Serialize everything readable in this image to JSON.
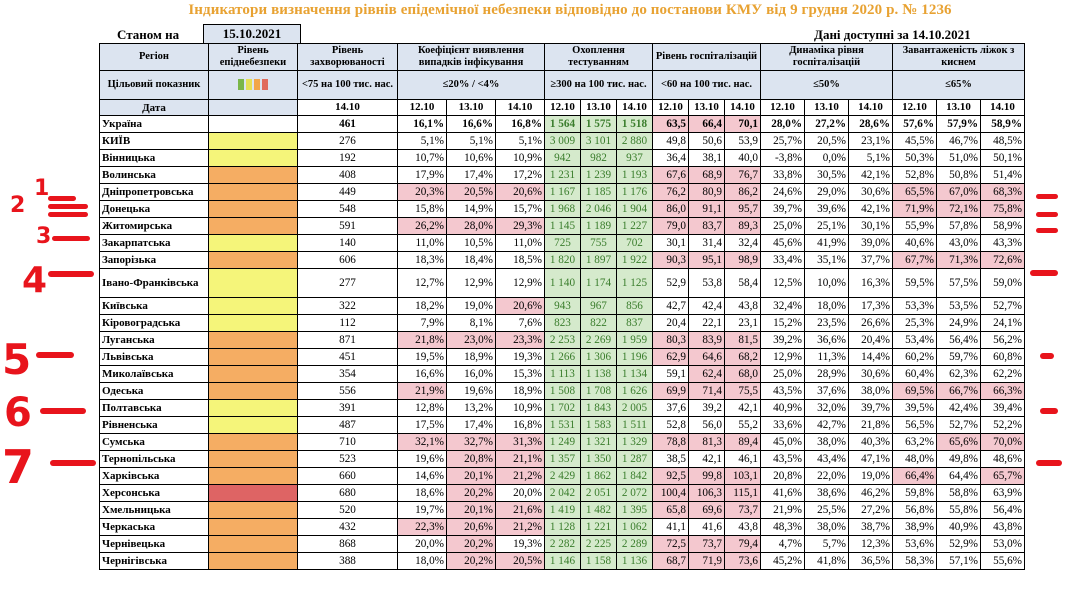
{
  "title": "Індикатори визначення рівнів епідемічної небезпеки відповідно до постанови КМУ від 9 грудня 2020 р. № 1236",
  "state_label": "Станом на",
  "state_date": "15.10.2021",
  "data_note": "Дані доступні за 14.10.2021",
  "colors": {
    "yellow": "#f5f57a",
    "orange": "#f5ad63",
    "red": "#de6464",
    "pink": "#f4c8cf",
    "green": "#d5eacc",
    "header": "#dce4f0"
  },
  "header": {
    "region": "Регіон",
    "target_label": "Цільовий показник",
    "date_label": "Дата",
    "level": "Рівень епіднебезпеки",
    "incidence": "Рівень захворюваності",
    "incidence_target": "<75 на 100 тис. нас.",
    "incidence_date": "14.10",
    "detection": "Коефіцієнт виявлення випадків інфікування",
    "detection_target": "≤20% / <4%",
    "testing": "Охоплення тестуванням",
    "testing_target": "≥300 на 100 тис. нас.",
    "hosp": "Рівень госпіталізацій",
    "hosp_target": "<60 на 100 тис. нас.",
    "dynamics": "Динаміка рівня госпіталізацій",
    "dynamics_target": "≤50%",
    "beds": "Завантаженість ліжок з киснем",
    "beds_target": "≤65%",
    "dates": [
      "12.10",
      "13.10",
      "14.10"
    ]
  },
  "swatch_colors": [
    "#7ab648",
    "#e5e055",
    "#f2a548",
    "#e06a5c"
  ],
  "rows": [
    {
      "name": "Україна",
      "lvl": "",
      "inc": "461",
      "det": [
        "16,1%",
        "16,6%",
        "16,8%"
      ],
      "tst": [
        "1 564",
        "1 575",
        "1 518"
      ],
      "hsp": [
        "63,5",
        "66,4",
        "70,1"
      ],
      "dyn": [
        "28,0%",
        "27,2%",
        "28,6%"
      ],
      "bed": [
        "57,6%",
        "57,9%",
        "58,9%"
      ]
    },
    {
      "name": "КИЇВ",
      "lvl": "yellow",
      "inc": "276",
      "det": [
        "5,1%",
        "5,1%",
        "5,1%"
      ],
      "tst": [
        "3 009",
        "3 101",
        "2 880"
      ],
      "hsp": [
        "49,8",
        "50,6",
        "53,9"
      ],
      "dyn": [
        "25,7%",
        "20,5%",
        "23,1%"
      ],
      "bed": [
        "45,5%",
        "46,7%",
        "48,5%"
      ]
    },
    {
      "name": "Вінницька",
      "lvl": "yellow",
      "inc": "192",
      "det": [
        "10,7%",
        "10,6%",
        "10,9%"
      ],
      "tst": [
        "942",
        "982",
        "937"
      ],
      "hsp": [
        "36,4",
        "38,1",
        "40,0"
      ],
      "dyn": [
        "-3,8%",
        "0,0%",
        "5,1%"
      ],
      "bed": [
        "50,3%",
        "51,0%",
        "50,1%"
      ]
    },
    {
      "name": "Волинська",
      "lvl": "orange",
      "inc": "408",
      "det": [
        "17,9%",
        "17,4%",
        "17,2%"
      ],
      "tst": [
        "1 231",
        "1 239",
        "1 193"
      ],
      "hsp": [
        "67,6",
        "68,9",
        "76,7"
      ],
      "dyn": [
        "33,8%",
        "30,5%",
        "42,1%"
      ],
      "bed": [
        "52,8%",
        "50,8%",
        "51,4%"
      ]
    },
    {
      "name": "Дніпропетровська",
      "lvl": "orange",
      "inc": "449",
      "det": [
        "20,3%",
        "20,5%",
        "20,6%"
      ],
      "tst": [
        "1 167",
        "1 185",
        "1 176"
      ],
      "hsp": [
        "76,2",
        "80,9",
        "86,2"
      ],
      "dyn": [
        "24,6%",
        "29,0%",
        "30,6%"
      ],
      "bed": [
        "65,5%",
        "67,0%",
        "68,3%"
      ]
    },
    {
      "name": "Донецька",
      "lvl": "orange",
      "inc": "548",
      "det": [
        "15,8%",
        "14,9%",
        "15,7%"
      ],
      "tst": [
        "1 968",
        "2 046",
        "1 904"
      ],
      "hsp": [
        "86,0",
        "91,1",
        "95,7"
      ],
      "dyn": [
        "39,7%",
        "39,6%",
        "42,1%"
      ],
      "bed": [
        "71,9%",
        "72,1%",
        "75,8%"
      ]
    },
    {
      "name": "Житомирська",
      "lvl": "orange",
      "inc": "591",
      "det": [
        "26,2%",
        "28,0%",
        "29,3%"
      ],
      "tst": [
        "1 145",
        "1 189",
        "1 227"
      ],
      "hsp": [
        "79,0",
        "83,7",
        "89,3"
      ],
      "dyn": [
        "25,0%",
        "25,1%",
        "30,1%"
      ],
      "bed": [
        "55,9%",
        "57,8%",
        "58,9%"
      ]
    },
    {
      "name": "Закарпатська",
      "lvl": "yellow",
      "inc": "140",
      "det": [
        "11,0%",
        "10,5%",
        "11,0%"
      ],
      "tst": [
        "725",
        "755",
        "702"
      ],
      "hsp": [
        "30,1",
        "31,4",
        "32,4"
      ],
      "dyn": [
        "45,6%",
        "41,9%",
        "39,0%"
      ],
      "bed": [
        "40,6%",
        "43,0%",
        "43,3%"
      ]
    },
    {
      "name": "Запорізька",
      "lvl": "orange",
      "inc": "606",
      "det": [
        "18,3%",
        "18,4%",
        "18,5%"
      ],
      "tst": [
        "1 820",
        "1 897",
        "1 922"
      ],
      "hsp": [
        "90,3",
        "95,1",
        "98,9"
      ],
      "dyn": [
        "33,4%",
        "35,1%",
        "37,7%"
      ],
      "bed": [
        "67,7%",
        "71,3%",
        "72,6%"
      ]
    },
    {
      "name": "Івано-Франківська",
      "lvl": "yellow",
      "inc": "277",
      "det": [
        "12,7%",
        "12,9%",
        "12,9%"
      ],
      "tst": [
        "1 140",
        "1 174",
        "1 125"
      ],
      "hsp": [
        "52,9",
        "53,8",
        "58,4"
      ],
      "dyn": [
        "12,5%",
        "10,0%",
        "16,3%"
      ],
      "bed": [
        "59,5%",
        "57,5%",
        "59,0%"
      ]
    },
    {
      "name": "Київська",
      "lvl": "yellow",
      "inc": "322",
      "det": [
        "18,2%",
        "19,0%",
        "20,6%"
      ],
      "tst": [
        "943",
        "967",
        "856"
      ],
      "hsp": [
        "42,7",
        "42,4",
        "43,8"
      ],
      "dyn": [
        "32,4%",
        "18,0%",
        "17,3%"
      ],
      "bed": [
        "53,3%",
        "53,5%",
        "52,7%"
      ]
    },
    {
      "name": "Кіровоградська",
      "lvl": "yellow",
      "inc": "112",
      "det": [
        "7,9%",
        "8,1%",
        "7,6%"
      ],
      "tst": [
        "823",
        "822",
        "837"
      ],
      "hsp": [
        "20,4",
        "22,1",
        "23,1"
      ],
      "dyn": [
        "15,2%",
        "23,5%",
        "26,6%"
      ],
      "bed": [
        "25,3%",
        "24,9%",
        "24,1%"
      ]
    },
    {
      "name": "Луганська",
      "lvl": "orange",
      "inc": "871",
      "det": [
        "21,8%",
        "23,0%",
        "23,3%"
      ],
      "tst": [
        "2 253",
        "2 269",
        "1 959"
      ],
      "hsp": [
        "80,3",
        "83,9",
        "81,5"
      ],
      "dyn": [
        "39,2%",
        "36,6%",
        "20,4%"
      ],
      "bed": [
        "53,4%",
        "56,4%",
        "56,2%"
      ]
    },
    {
      "name": "Львівська",
      "lvl": "orange",
      "inc": "451",
      "det": [
        "19,5%",
        "18,9%",
        "19,3%"
      ],
      "tst": [
        "1 266",
        "1 306",
        "1 196"
      ],
      "hsp": [
        "62,9",
        "64,6",
        "68,2"
      ],
      "dyn": [
        "12,9%",
        "11,3%",
        "14,4%"
      ],
      "bed": [
        "60,2%",
        "59,7%",
        "60,8%"
      ]
    },
    {
      "name": "Миколаївська",
      "lvl": "orange",
      "inc": "354",
      "det": [
        "16,6%",
        "16,0%",
        "15,3%"
      ],
      "tst": [
        "1 113",
        "1 138",
        "1 134"
      ],
      "hsp": [
        "59,1",
        "62,4",
        "68,0"
      ],
      "dyn": [
        "25,0%",
        "28,9%",
        "30,6%"
      ],
      "bed": [
        "60,4%",
        "62,3%",
        "62,2%"
      ]
    },
    {
      "name": "Одеська",
      "lvl": "orange",
      "inc": "556",
      "det": [
        "21,9%",
        "19,6%",
        "18,9%"
      ],
      "tst": [
        "1 508",
        "1 708",
        "1 626"
      ],
      "hsp": [
        "69,9",
        "71,4",
        "75,5"
      ],
      "dyn": [
        "43,5%",
        "37,6%",
        "38,0%"
      ],
      "bed": [
        "69,5%",
        "66,7%",
        "66,3%"
      ]
    },
    {
      "name": "Полтавська",
      "lvl": "yellow",
      "inc": "391",
      "det": [
        "12,8%",
        "13,2%",
        "10,9%"
      ],
      "tst": [
        "1 702",
        "1 843",
        "2 005"
      ],
      "hsp": [
        "37,6",
        "39,2",
        "42,1"
      ],
      "dyn": [
        "40,9%",
        "32,0%",
        "39,7%"
      ],
      "bed": [
        "39,5%",
        "42,4%",
        "39,4%"
      ]
    },
    {
      "name": "Рівненська",
      "lvl": "yellow",
      "inc": "487",
      "det": [
        "17,5%",
        "17,4%",
        "16,8%"
      ],
      "tst": [
        "1 531",
        "1 583",
        "1 511"
      ],
      "hsp": [
        "52,8",
        "56,0",
        "55,2"
      ],
      "dyn": [
        "33,6%",
        "42,7%",
        "21,8%"
      ],
      "bed": [
        "56,5%",
        "52,7%",
        "52,2%"
      ]
    },
    {
      "name": "Сумська",
      "lvl": "orange",
      "inc": "710",
      "det": [
        "32,1%",
        "32,7%",
        "31,3%"
      ],
      "tst": [
        "1 249",
        "1 321",
        "1 329"
      ],
      "hsp": [
        "78,8",
        "81,3",
        "89,4"
      ],
      "dyn": [
        "45,0%",
        "38,0%",
        "40,3%"
      ],
      "bed": [
        "63,2%",
        "65,6%",
        "70,0%"
      ]
    },
    {
      "name": "Тернопільська",
      "lvl": "orange",
      "inc": "523",
      "det": [
        "19,6%",
        "20,8%",
        "21,1%"
      ],
      "tst": [
        "1 357",
        "1 350",
        "1 287"
      ],
      "hsp": [
        "38,5",
        "42,1",
        "46,1"
      ],
      "dyn": [
        "43,5%",
        "43,4%",
        "47,1%"
      ],
      "bed": [
        "48,0%",
        "49,8%",
        "48,6%"
      ]
    },
    {
      "name": "Харківська",
      "lvl": "orange",
      "inc": "660",
      "det": [
        "14,6%",
        "20,1%",
        "21,2%"
      ],
      "tst": [
        "2 429",
        "1 862",
        "1 842"
      ],
      "hsp": [
        "92,5",
        "99,8",
        "103,1"
      ],
      "dyn": [
        "20,8%",
        "22,0%",
        "19,0%"
      ],
      "bed": [
        "66,4%",
        "64,4%",
        "65,7%"
      ]
    },
    {
      "name": "Херсонська",
      "lvl": "red",
      "inc": "680",
      "det": [
        "18,6%",
        "20,2%",
        "20,0%"
      ],
      "tst": [
        "2 042",
        "2 051",
        "2 072"
      ],
      "hsp": [
        "100,4",
        "106,3",
        "115,1"
      ],
      "dyn": [
        "41,6%",
        "38,6%",
        "46,2%"
      ],
      "bed": [
        "59,8%",
        "58,8%",
        "63,9%"
      ]
    },
    {
      "name": "Хмельницька",
      "lvl": "orange",
      "inc": "520",
      "det": [
        "19,7%",
        "20,1%",
        "21,6%"
      ],
      "tst": [
        "1 419",
        "1 482",
        "1 395"
      ],
      "hsp": [
        "65,8",
        "69,6",
        "73,7"
      ],
      "dyn": [
        "21,9%",
        "25,5%",
        "27,2%"
      ],
      "bed": [
        "56,8%",
        "55,8%",
        "56,4%"
      ]
    },
    {
      "name": "Черкаська",
      "lvl": "orange",
      "inc": "432",
      "det": [
        "22,3%",
        "20,6%",
        "21,2%"
      ],
      "tst": [
        "1 128",
        "1 221",
        "1 062"
      ],
      "hsp": [
        "41,1",
        "41,6",
        "43,8"
      ],
      "dyn": [
        "48,3%",
        "38,0%",
        "38,7%"
      ],
      "bed": [
        "38,9%",
        "40,9%",
        "43,8%"
      ]
    },
    {
      "name": "Чернівецька",
      "lvl": "orange",
      "inc": "868",
      "det": [
        "20,0%",
        "20,2%",
        "19,3%"
      ],
      "tst": [
        "2 282",
        "2 225",
        "2 289"
      ],
      "hsp": [
        "72,5",
        "73,7",
        "79,4"
      ],
      "dyn": [
        "4,7%",
        "5,7%",
        "12,3%"
      ],
      "bed": [
        "53,6%",
        "52,9%",
        "53,0%"
      ]
    },
    {
      "name": "Чернігівська",
      "lvl": "orange",
      "inc": "388",
      "det": [
        "18,0%",
        "20,2%",
        "20,5%"
      ],
      "tst": [
        "1 146",
        "1 158",
        "1 136"
      ],
      "hsp": [
        "68,7",
        "71,9",
        "73,6"
      ],
      "dyn": [
        "45,2%",
        "41,8%",
        "36,5%"
      ],
      "bed": [
        "58,3%",
        "57,1%",
        "55,6%"
      ]
    }
  ],
  "annotations": [
    {
      "label": "1"
    },
    {
      "label": "2"
    },
    {
      "label": "3"
    },
    {
      "label": "4"
    },
    {
      "label": "5"
    },
    {
      "label": "6"
    },
    {
      "label": "7"
    }
  ]
}
